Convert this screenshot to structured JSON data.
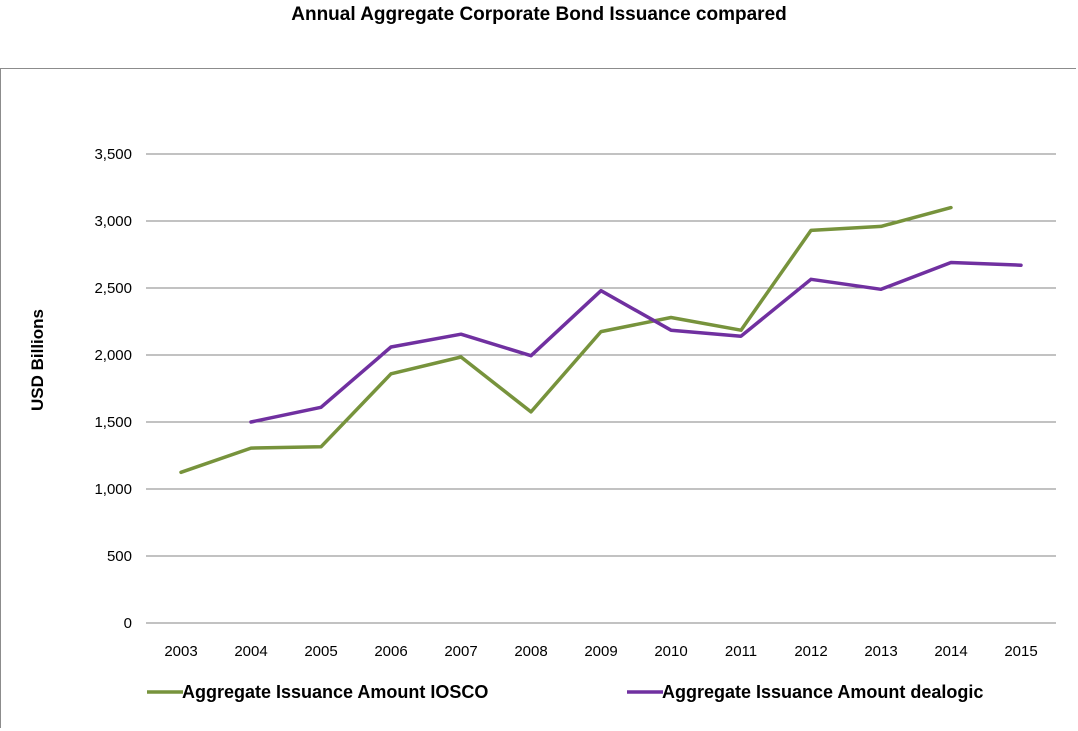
{
  "chart_data": {
    "type": "line",
    "title": "Annual Aggregate Corporate Bond Issuance compared",
    "ylabel": "USD  Billions",
    "xlabel": "",
    "x": [
      "2003",
      "2004",
      "2005",
      "2006",
      "2007",
      "2008",
      "2009",
      "2010",
      "2011",
      "2012",
      "2013",
      "2014",
      "2015"
    ],
    "ylim": [
      0,
      3500
    ],
    "yticks": [
      0,
      500,
      1000,
      1500,
      2000,
      2500,
      3000,
      3500
    ],
    "ytick_labels": [
      "0",
      "500",
      "1,000",
      "1,500",
      "2,000",
      "2,500",
      "3,000",
      "3,500"
    ],
    "grid": true,
    "legend_position": "bottom",
    "series": [
      {
        "name": "Aggregate Issuance Amount IOSCO",
        "color": "#77933c",
        "values": [
          1125,
          1305,
          1315,
          1860,
          1985,
          1575,
          2175,
          2280,
          2185,
          2930,
          2960,
          3100,
          null
        ]
      },
      {
        "name": "Aggregate Issuance Amount dealogic",
        "color": "#7030a0",
        "values": [
          null,
          1500,
          1610,
          2060,
          2155,
          1995,
          2480,
          2185,
          2140,
          2565,
          2490,
          2690,
          2670
        ]
      }
    ]
  }
}
